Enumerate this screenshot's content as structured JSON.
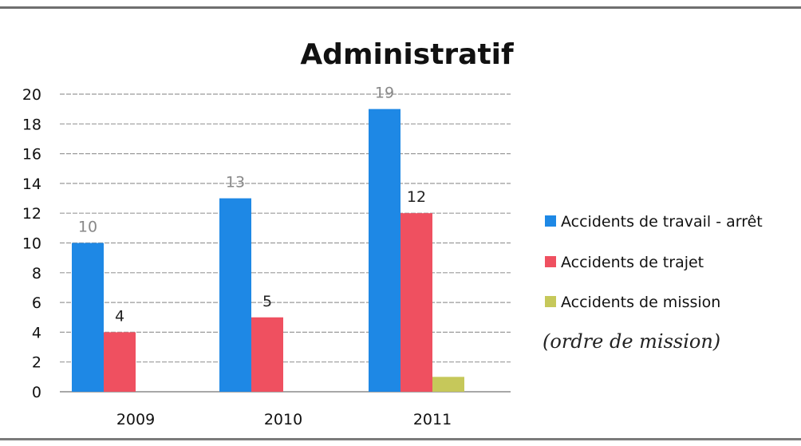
{
  "chart_data": {
    "type": "bar",
    "title": "Administratif",
    "categories": [
      "2009",
      "2010",
      "2011"
    ],
    "series": [
      {
        "name": "Accidents de travail - arrêt",
        "color": "#1e88e5",
        "values": [
          10,
          13,
          19
        ]
      },
      {
        "name": "Accidents de trajet",
        "color": "#ef5060",
        "values": [
          4,
          5,
          12
        ]
      },
      {
        "name": "Accidents de mission",
        "color": "#c6c85a",
        "values": [
          null,
          null,
          1
        ]
      }
    ],
    "data_labels": [
      [
        "10",
        "13",
        "19"
      ],
      [
        "4",
        "5",
        "12"
      ],
      [
        "",
        "",
        ""
      ]
    ],
    "ylim": [
      0,
      20
    ],
    "yticks": [
      "0",
      "2",
      "4",
      "6",
      "8",
      "10",
      "12",
      "14",
      "16",
      "18",
      "20"
    ],
    "grid": true,
    "legend_position": "right",
    "annotation": "(ordre de mission)"
  }
}
